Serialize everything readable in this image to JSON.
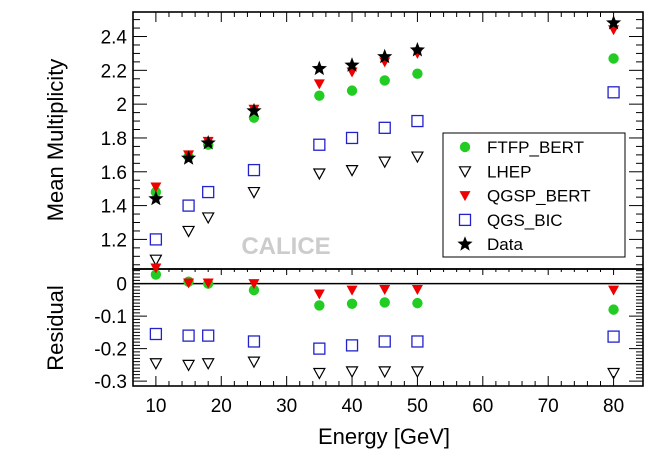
{
  "chart_data": {
    "type": "scatter",
    "watermark": "CALICE",
    "xlabel": "Energy [GeV]",
    "x": [
      10,
      15,
      18,
      25,
      35,
      40,
      45,
      50,
      80
    ],
    "xlim": [
      6.5,
      84.5
    ],
    "xticks": [
      10,
      20,
      30,
      40,
      50,
      60,
      70,
      80
    ],
    "top": {
      "ylabel": "Mean Multiplicity",
      "ylim": [
        1.025,
        2.545
      ],
      "yticks": [
        "1.2",
        "1.4",
        "1.6",
        "1.8",
        "2",
        "2.2",
        "2.4"
      ],
      "series": [
        {
          "name": "FTFP_BERT",
          "marker": "circle",
          "color": "#22cc22",
          "values": [
            1.48,
            1.69,
            1.76,
            1.92,
            2.05,
            2.08,
            2.14,
            2.18,
            2.27
          ]
        },
        {
          "name": "LHEP",
          "marker": "triangle-down-open",
          "color": "#000000",
          "values": [
            1.08,
            1.25,
            1.33,
            1.48,
            1.59,
            1.61,
            1.66,
            1.69,
            1.79
          ]
        },
        {
          "name": "QGSP_BERT",
          "marker": "triangle-down",
          "color": "#ee0000",
          "values": [
            1.51,
            1.7,
            1.78,
            1.97,
            2.12,
            2.19,
            2.25,
            2.3,
            2.44
          ]
        },
        {
          "name": "QGS_BIC",
          "marker": "square-open",
          "color": "#2222cc",
          "values": [
            1.2,
            1.4,
            1.48,
            1.61,
            1.76,
            1.8,
            1.86,
            1.9,
            2.07
          ]
        },
        {
          "name": "Data",
          "marker": "star",
          "color": "#000000",
          "values": [
            1.44,
            1.68,
            1.77,
            1.96,
            2.21,
            2.23,
            2.28,
            2.32,
            2.48
          ]
        }
      ]
    },
    "bottom": {
      "ylabel": "Residual",
      "ylim": [
        -0.315,
        0.045
      ],
      "yticks": [
        "0",
        "-0.1",
        "-0.2",
        "-0.3"
      ],
      "series": [
        {
          "name": "FTFP_BERT",
          "marker": "circle",
          "color": "#22cc22",
          "values": [
            0.028,
            0.006,
            0.0,
            -0.02,
            -0.067,
            -0.062,
            -0.058,
            -0.06,
            -0.08
          ]
        },
        {
          "name": "LHEP",
          "marker": "triangle-down-open",
          "color": "#000000",
          "values": [
            -0.245,
            -0.25,
            -0.245,
            -0.24,
            -0.275,
            -0.27,
            -0.27,
            -0.27,
            -0.275
          ]
        },
        {
          "name": "QGSP_BERT",
          "marker": "triangle-down",
          "color": "#ee0000",
          "values": [
            0.048,
            0.002,
            0.002,
            0.0,
            -0.032,
            -0.02,
            -0.018,
            -0.018,
            -0.02
          ]
        },
        {
          "name": "QGS_BIC",
          "marker": "square-open",
          "color": "#2222cc",
          "values": [
            -0.155,
            -0.16,
            -0.16,
            -0.178,
            -0.2,
            -0.19,
            -0.178,
            -0.178,
            -0.163
          ]
        }
      ]
    },
    "legend": {
      "position": "right-middle",
      "entries": [
        "FTFP_BERT",
        "LHEP",
        "QGSP_BERT",
        "QGS_BIC",
        "Data"
      ]
    }
  }
}
